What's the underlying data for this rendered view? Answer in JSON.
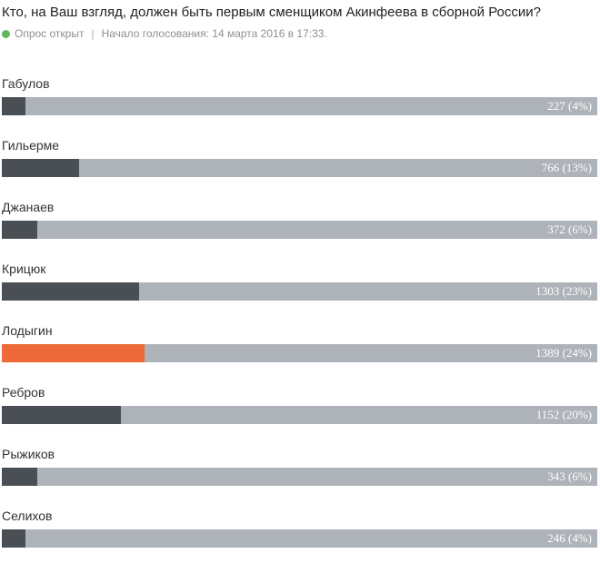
{
  "poll": {
    "question": "Кто, на Ваш взгляд, должен быть первым сменщиком Акинфеева в сборной России?",
    "status": "Опрос открыт",
    "separator": "|",
    "started": "Начало голосования: 14 марта 2016 в 17:33.",
    "colors": {
      "status_dot": "#5cb85c",
      "bar_track": "#aeb3b9",
      "bar_fill": "#4a4f55",
      "bar_fill_leader": "#ee6a3b"
    },
    "options": [
      {
        "label": "Габулов",
        "value": "227 (4%)",
        "votes": 227,
        "percent": 4,
        "leader": false
      },
      {
        "label": "Гильерме",
        "value": "766 (13%)",
        "votes": 766,
        "percent": 13,
        "leader": false
      },
      {
        "label": "Джанаев",
        "value": "372 (6%)",
        "votes": 372,
        "percent": 6,
        "leader": false
      },
      {
        "label": "Крицюк",
        "value": "1303 (23%)",
        "votes": 1303,
        "percent": 23,
        "leader": false
      },
      {
        "label": "Лодыгин",
        "value": "1389 (24%)",
        "votes": 1389,
        "percent": 24,
        "leader": true
      },
      {
        "label": "Ребров",
        "value": "1152 (20%)",
        "votes": 1152,
        "percent": 20,
        "leader": false
      },
      {
        "label": "Рыжиков",
        "value": "343 (6%)",
        "votes": 343,
        "percent": 6,
        "leader": false
      },
      {
        "label": "Селихов",
        "value": "246 (4%)",
        "votes": 246,
        "percent": 4,
        "leader": false
      }
    ]
  }
}
